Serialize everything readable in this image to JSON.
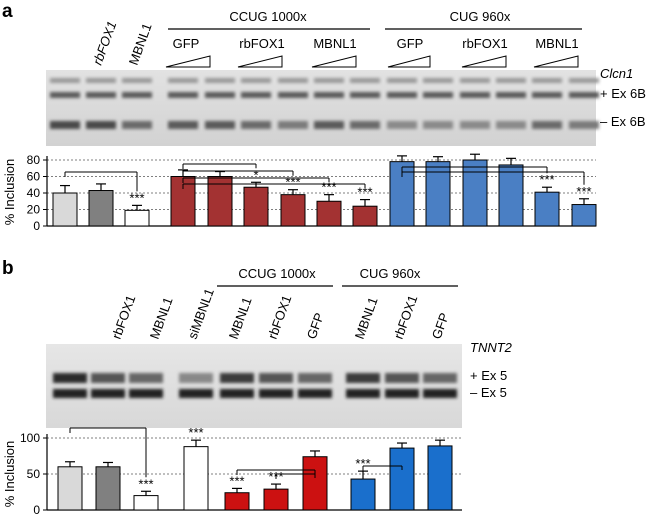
{
  "panels": [
    {
      "letter": "a",
      "gene": "Clcn1",
      "bands": [
        "+ Ex 6B",
        "– Ex 6B"
      ],
      "lane_labels": [
        "",
        "rbFOX1",
        "MBNL1",
        "GFP",
        "rbFOX1",
        "MBNL1",
        "GFP",
        "rbFOX1",
        "MBNL1"
      ],
      "groups": [
        {
          "label": "CCUG 1000x"
        },
        {
          "label": "CUG 960x"
        }
      ]
    },
    {
      "letter": "b",
      "gene": "TNNT2",
      "bands": [
        "+ Ex 5",
        "– Ex 5"
      ],
      "lane_labels": [
        "",
        "rbFOX1",
        "MBNL1",
        "siMBNL1",
        "MBNL1",
        "rbFOX1",
        "GFP",
        "MBNL1",
        "rbFOX1",
        "GFP"
      ],
      "groups": [
        {
          "label": "CCUG 1000x"
        },
        {
          "label": "CUG 960x"
        }
      ]
    }
  ],
  "chart_data": [
    {
      "type": "bar",
      "panel": "a",
      "ylabel": "% Inclusion",
      "ylim": [
        0,
        80
      ],
      "yticks": [
        0,
        20,
        40,
        60,
        80
      ],
      "grid": true,
      "values": [
        40,
        43,
        19,
        60,
        60,
        47,
        38,
        30,
        24,
        78,
        78,
        80,
        74,
        41,
        26
      ],
      "errors": [
        9,
        8,
        6,
        8,
        6,
        6,
        6,
        8,
        8,
        7,
        6,
        7,
        8,
        6,
        7
      ],
      "colors": [
        "#d9d9d9",
        "#808080",
        "#ffffff",
        "#a33232",
        "#a33232",
        "#a33232",
        "#a33232",
        "#a33232",
        "#a33232",
        "#4a7fc4",
        "#4a7fc4",
        "#4a7fc4",
        "#4a7fc4",
        "#4a7fc4",
        "#4a7fc4"
      ],
      "significance": [
        "",
        "",
        "***",
        "",
        "",
        "*",
        "***",
        "***",
        "***",
        "",
        "",
        "",
        "",
        "***",
        "***"
      ]
    },
    {
      "type": "bar",
      "panel": "b",
      "ylabel": "% Inclusion",
      "ylim": [
        0,
        100
      ],
      "yticks": [
        0,
        50,
        100
      ],
      "grid": true,
      "values": [
        60,
        60,
        20,
        88,
        24,
        29,
        74,
        43,
        86,
        89
      ],
      "errors": [
        7,
        6,
        6,
        9,
        6,
        7,
        8,
        11,
        7,
        8
      ],
      "colors": [
        "#d9d9d9",
        "#808080",
        "#ffffff",
        "#ffffff",
        "#cc1111",
        "#cc1111",
        "#cc1111",
        "#1a6fcc",
        "#1a6fcc",
        "#1a6fcc"
      ],
      "significance": [
        "",
        "",
        "***",
        "***",
        "***",
        "***",
        "",
        "***",
        "",
        ""
      ]
    }
  ]
}
